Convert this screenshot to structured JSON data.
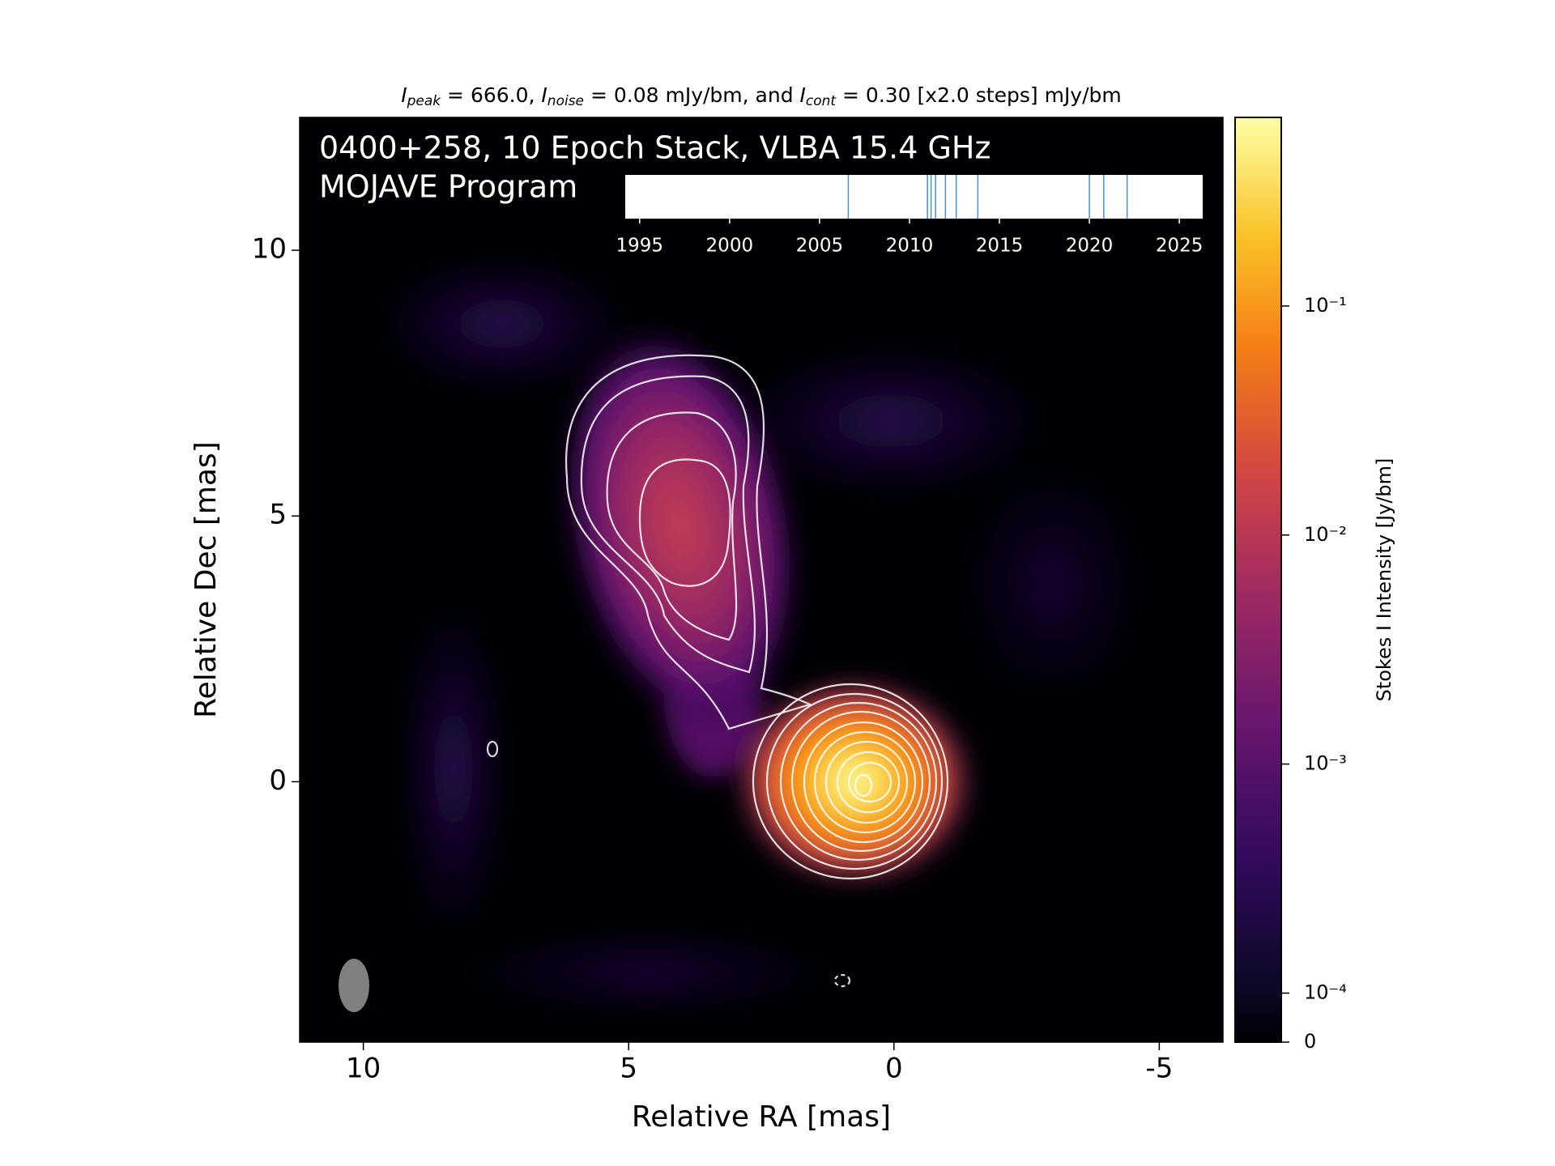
{
  "chart_data": {
    "type": "image",
    "title": [
      "I",
      "peak",
      " = 666.0, ",
      "I",
      "noise",
      " = 0.08 mJy/bm, and ",
      "I",
      "cont",
      " = 0.30 [x2.0 steps] mJy/bm"
    ],
    "image_text": [
      "0400+258, 10 Epoch Stack, VLBA 15.4 GHz",
      "MOJAVE Program"
    ],
    "xlabel": "Relative RA [mas]",
    "ylabel": "Relative Dec [mas]",
    "xlim": [
      11.2,
      -6.2
    ],
    "ylim": [
      -4.9,
      12.5
    ],
    "xticks": [
      10,
      5,
      0,
      -5
    ],
    "yticks": [
      0,
      5,
      10
    ],
    "colorbar": {
      "label": "Stokes I Intensity [Jy/bm]",
      "scale": "symlog",
      "clim": [
        0,
        0.666
      ],
      "ticks": [
        0,
        {
          "value": 0.0001,
          "label": "10⁻⁴"
        },
        {
          "value": 0.001,
          "label": "10⁻³"
        },
        {
          "value": 0.01,
          "label": "10⁻²"
        },
        {
          "value": 0.1,
          "label": "10⁻¹"
        }
      ]
    },
    "epochs": {
      "x": [
        2006.6,
        2011.0,
        2011.2,
        2011.45,
        2012.0,
        2012.6,
        2013.8,
        2020.0,
        2020.8,
        2022.1
      ],
      "color": "#4a8fd4",
      "xlim": [
        1994.2,
        2026.3
      ],
      "xticks": [
        1995,
        2000,
        2005,
        2010,
        2015,
        2020,
        2025
      ]
    }
  }
}
